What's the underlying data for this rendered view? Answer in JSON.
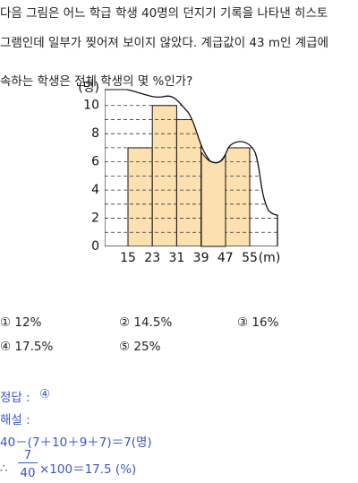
{
  "problem": {
    "lines": [
      "다음 그림은 어느 학급 학생 40명의 던지기 기록을 나타낸 히스토",
      "그램인데 일부가 찢어져 보이지 않았다. 계급값이 43 m인 계급에",
      "속하는 학생은 전체 학생의 몇 %인가?"
    ]
  },
  "chart_data": {
    "type": "histogram",
    "bins": [
      15,
      23,
      31,
      39,
      47,
      55
    ],
    "values": [
      7,
      10,
      9,
      null,
      7
    ],
    "color": "#fce0b0",
    "ylim": [
      0,
      11
    ],
    "yticks": [
      0,
      2,
      4,
      6,
      8,
      10
    ],
    "y_label": "(명)",
    "x_label": "(m)"
  },
  "choices": [
    "① 12%",
    "② 14.5%",
    "③ 16%",
    "④ 17.5%",
    "⑤ 25%"
  ],
  "answer": {
    "label": "정답 :",
    "value": "④"
  },
  "explanation": {
    "label": "해설 :",
    "line1": "40－(7＋10＋9＋7)＝7(명)",
    "therefore": "∴",
    "numerator": "7",
    "denominator": "40",
    "rest": "×100＝17.5 (%)"
  }
}
